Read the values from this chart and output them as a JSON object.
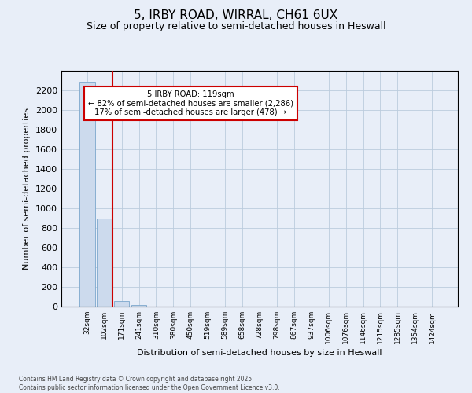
{
  "title1": "5, IRBY ROAD, WIRRAL, CH61 6UX",
  "title2": "Size of property relative to semi-detached houses in Heswall",
  "xlabel": "Distribution of semi-detached houses by size in Heswall",
  "ylabel": "Number of semi-detached properties",
  "bin_labels": [
    "32sqm",
    "102sqm",
    "171sqm",
    "241sqm",
    "310sqm",
    "380sqm",
    "450sqm",
    "519sqm",
    "589sqm",
    "658sqm",
    "728sqm",
    "798sqm",
    "867sqm",
    "937sqm",
    "1006sqm",
    "1076sqm",
    "1146sqm",
    "1215sqm",
    "1285sqm",
    "1354sqm",
    "1424sqm"
  ],
  "values": [
    2286,
    900,
    55,
    20,
    3,
    1,
    0,
    0,
    0,
    0,
    0,
    0,
    0,
    0,
    0,
    0,
    0,
    0,
    0,
    0,
    0
  ],
  "bar_color": "#ccdaed",
  "bar_edge_color": "#7ba7cc",
  "grid_color": "#bbccdd",
  "vline_color": "#cc0000",
  "vline_pos": 1.45,
  "annotation_line1": "5 IRBY ROAD: 119sqm",
  "annotation_line2": "← 82% of semi-detached houses are smaller (2,286)",
  "annotation_line3": "17% of semi-detached houses are larger (478) →",
  "annotation_box_edge": "#cc0000",
  "ylim": [
    0,
    2400
  ],
  "yticks": [
    0,
    200,
    400,
    600,
    800,
    1000,
    1200,
    1400,
    1600,
    1800,
    2000,
    2200
  ],
  "footnote": "Contains HM Land Registry data © Crown copyright and database right 2025.\nContains public sector information licensed under the Open Government Licence v3.0.",
  "background_color": "#e8eef8"
}
